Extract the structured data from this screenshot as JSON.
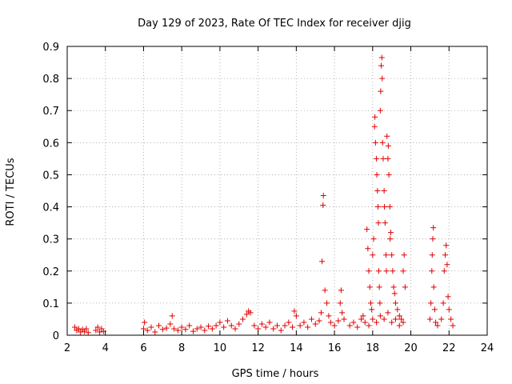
{
  "chart_data": {
    "type": "scatter",
    "title": "Day 129 of 2023, Rate Of TEC Index for receiver djig",
    "xlabel": "GPS time / hours",
    "ylabel": "ROTI / TECUs",
    "xlim": [
      2,
      24
    ],
    "ylim": [
      0,
      0.9
    ],
    "xticks": [
      "2",
      "4",
      "6",
      "8",
      "10",
      "12",
      "14",
      "16",
      "18",
      "20",
      "22",
      "24"
    ],
    "yticks": [
      "0",
      "0.1",
      "0.2",
      "0.3",
      "0.4",
      "0.5",
      "0.6",
      "0.7",
      "0.8",
      "0.9"
    ],
    "grid": true,
    "marker": "plus",
    "color": "#e00000",
    "points": [
      [
        2.4,
        0.025
      ],
      [
        2.5,
        0.015
      ],
      [
        2.6,
        0.02
      ],
      [
        2.7,
        0.01
      ],
      [
        2.8,
        0.018
      ],
      [
        2.9,
        0.012
      ],
      [
        3.0,
        0.02
      ],
      [
        3.1,
        0.008
      ],
      [
        3.5,
        0.015
      ],
      [
        3.6,
        0.025
      ],
      [
        3.7,
        0.01
      ],
      [
        3.8,
        0.02
      ],
      [
        3.9,
        0.012
      ],
      [
        6.0,
        0.02
      ],
      [
        6.05,
        0.04
      ],
      [
        6.2,
        0.015
      ],
      [
        6.4,
        0.025
      ],
      [
        6.6,
        0.01
      ],
      [
        6.8,
        0.03
      ],
      [
        7.0,
        0.018
      ],
      [
        7.2,
        0.022
      ],
      [
        7.4,
        0.035
      ],
      [
        7.5,
        0.06
      ],
      [
        7.6,
        0.02
      ],
      [
        7.8,
        0.015
      ],
      [
        8.0,
        0.025
      ],
      [
        8.2,
        0.018
      ],
      [
        8.4,
        0.03
      ],
      [
        8.6,
        0.012
      ],
      [
        8.8,
        0.02
      ],
      [
        9.0,
        0.025
      ],
      [
        9.2,
        0.015
      ],
      [
        9.4,
        0.028
      ],
      [
        9.6,
        0.02
      ],
      [
        9.8,
        0.03
      ],
      [
        10.0,
        0.04
      ],
      [
        10.2,
        0.025
      ],
      [
        10.4,
        0.045
      ],
      [
        10.6,
        0.03
      ],
      [
        10.8,
        0.02
      ],
      [
        11.0,
        0.035
      ],
      [
        11.2,
        0.05
      ],
      [
        11.4,
        0.065
      ],
      [
        11.5,
        0.075
      ],
      [
        11.6,
        0.07
      ],
      [
        11.8,
        0.03
      ],
      [
        12.0,
        0.02
      ],
      [
        12.2,
        0.035
      ],
      [
        12.4,
        0.025
      ],
      [
        12.6,
        0.04
      ],
      [
        12.8,
        0.02
      ],
      [
        13.0,
        0.03
      ],
      [
        13.2,
        0.015
      ],
      [
        13.4,
        0.03
      ],
      [
        13.6,
        0.04
      ],
      [
        13.8,
        0.025
      ],
      [
        13.9,
        0.075
      ],
      [
        14.0,
        0.06
      ],
      [
        14.2,
        0.03
      ],
      [
        14.4,
        0.04
      ],
      [
        14.6,
        0.025
      ],
      [
        14.8,
        0.05
      ],
      [
        15.0,
        0.035
      ],
      [
        15.2,
        0.045
      ],
      [
        15.3,
        0.07
      ],
      [
        15.35,
        0.23
      ],
      [
        15.4,
        0.405
      ],
      [
        15.42,
        0.435
      ],
      [
        15.5,
        0.14
      ],
      [
        15.6,
        0.1
      ],
      [
        15.7,
        0.06
      ],
      [
        15.8,
        0.04
      ],
      [
        16.0,
        0.03
      ],
      [
        16.2,
        0.045
      ],
      [
        16.3,
        0.1
      ],
      [
        16.35,
        0.14
      ],
      [
        16.4,
        0.07
      ],
      [
        16.5,
        0.05
      ],
      [
        16.8,
        0.03
      ],
      [
        17.0,
        0.04
      ],
      [
        17.2,
        0.025
      ],
      [
        17.4,
        0.05
      ],
      [
        17.5,
        0.06
      ],
      [
        17.6,
        0.04
      ],
      [
        17.8,
        0.03
      ],
      [
        17.7,
        0.33
      ],
      [
        17.75,
        0.27
      ],
      [
        17.8,
        0.2
      ],
      [
        17.85,
        0.15
      ],
      [
        17.9,
        0.1
      ],
      [
        17.95,
        0.08
      ],
      [
        18.0,
        0.25
      ],
      [
        18.05,
        0.3
      ],
      [
        18.1,
        0.65
      ],
      [
        18.12,
        0.68
      ],
      [
        18.15,
        0.6
      ],
      [
        18.2,
        0.55
      ],
      [
        18.22,
        0.5
      ],
      [
        18.25,
        0.45
      ],
      [
        18.28,
        0.4
      ],
      [
        18.3,
        0.35
      ],
      [
        18.32,
        0.2
      ],
      [
        18.35,
        0.15
      ],
      [
        18.38,
        0.1
      ],
      [
        18.4,
        0.7
      ],
      [
        18.42,
        0.76
      ],
      [
        18.45,
        0.84
      ],
      [
        18.48,
        0.865
      ],
      [
        18.5,
        0.8
      ],
      [
        18.52,
        0.6
      ],
      [
        18.55,
        0.55
      ],
      [
        18.6,
        0.45
      ],
      [
        18.62,
        0.4
      ],
      [
        18.65,
        0.35
      ],
      [
        18.7,
        0.25
      ],
      [
        18.72,
        0.2
      ],
      [
        18.75,
        0.62
      ],
      [
        18.8,
        0.55
      ],
      [
        18.82,
        0.59
      ],
      [
        18.85,
        0.5
      ],
      [
        18.9,
        0.4
      ],
      [
        18.92,
        0.3
      ],
      [
        18.95,
        0.32
      ],
      [
        19.0,
        0.25
      ],
      [
        19.05,
        0.2
      ],
      [
        19.1,
        0.15
      ],
      [
        19.15,
        0.13
      ],
      [
        19.2,
        0.1
      ],
      [
        19.3,
        0.08
      ],
      [
        19.4,
        0.06
      ],
      [
        19.5,
        0.05
      ],
      [
        19.6,
        0.2
      ],
      [
        19.65,
        0.25
      ],
      [
        19.7,
        0.15
      ],
      [
        18.0,
        0.05
      ],
      [
        18.2,
        0.04
      ],
      [
        18.4,
        0.06
      ],
      [
        18.6,
        0.05
      ],
      [
        18.8,
        0.07
      ],
      [
        19.0,
        0.04
      ],
      [
        19.2,
        0.05
      ],
      [
        19.4,
        0.03
      ],
      [
        19.6,
        0.04
      ],
      [
        21.0,
        0.05
      ],
      [
        21.05,
        0.1
      ],
      [
        21.1,
        0.2
      ],
      [
        21.12,
        0.25
      ],
      [
        21.15,
        0.3
      ],
      [
        21.18,
        0.335
      ],
      [
        21.2,
        0.15
      ],
      [
        21.25,
        0.08
      ],
      [
        21.3,
        0.04
      ],
      [
        21.4,
        0.03
      ],
      [
        21.6,
        0.05
      ],
      [
        21.7,
        0.1
      ],
      [
        21.75,
        0.2
      ],
      [
        21.8,
        0.25
      ],
      [
        21.85,
        0.28
      ],
      [
        21.9,
        0.22
      ],
      [
        21.95,
        0.12
      ],
      [
        22.0,
        0.08
      ],
      [
        22.1,
        0.05
      ],
      [
        22.2,
        0.03
      ]
    ]
  }
}
